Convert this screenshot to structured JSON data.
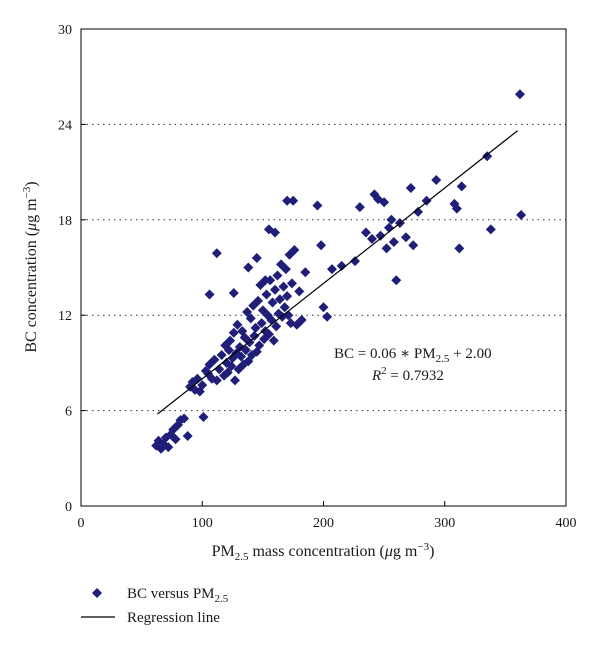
{
  "chart_data": {
    "type": "scatter",
    "xlabel": {
      "pre": "PM",
      "sub": "2.5",
      "post": " mass concentration (",
      "mu": "μ",
      "unit": "g m",
      "sup": "−3",
      "close": ")"
    },
    "ylabel": {
      "pre": "BC concentration (",
      "mu": "μ",
      "unit": "g m",
      "sup": "−3",
      "close": ")"
    },
    "xlim": [
      0,
      400
    ],
    "ylim": [
      0,
      30
    ],
    "x_ticks": [
      "0",
      "100",
      "200",
      "300",
      "400"
    ],
    "y_ticks": [
      "0",
      "6",
      "12",
      "18",
      "24",
      "30"
    ],
    "y_tick_values": [
      0,
      6,
      12,
      18,
      24,
      30
    ],
    "x_tick_values": [
      0,
      100,
      200,
      300,
      400
    ],
    "grid": "horizontal dotted",
    "series": [
      {
        "name": "BC versus PM2.5",
        "marker": "diamond",
        "color": "#1f1f7a",
        "points": [
          [
            62,
            3.8
          ],
          [
            64,
            4.1
          ],
          [
            66,
            3.6
          ],
          [
            68,
            3.9
          ],
          [
            70,
            4.3
          ],
          [
            72,
            3.7
          ],
          [
            74,
            4.5
          ],
          [
            76,
            4.8
          ],
          [
            78,
            4.2
          ],
          [
            80,
            5.1
          ],
          [
            82,
            5.4
          ],
          [
            85,
            5.5
          ],
          [
            88,
            4.4
          ],
          [
            90,
            7.5
          ],
          [
            92,
            7.8
          ],
          [
            94,
            7.3
          ],
          [
            96,
            8.0
          ],
          [
            98,
            7.2
          ],
          [
            100,
            7.6
          ],
          [
            101,
            5.6
          ],
          [
            103,
            8.5
          ],
          [
            105,
            8.3
          ],
          [
            106,
            8.9
          ],
          [
            108,
            8.0
          ],
          [
            110,
            9.2
          ],
          [
            112,
            7.9
          ],
          [
            114,
            8.6
          ],
          [
            116,
            9.5
          ],
          [
            118,
            8.2
          ],
          [
            119,
            10.1
          ],
          [
            120,
            9.0
          ],
          [
            121,
            8.4
          ],
          [
            122,
            9.8
          ],
          [
            123,
            10.4
          ],
          [
            124,
            8.8
          ],
          [
            125,
            9.3
          ],
          [
            126,
            10.9
          ],
          [
            127,
            7.9
          ],
          [
            128,
            9.6
          ],
          [
            129,
            11.4
          ],
          [
            130,
            8.6
          ],
          [
            131,
            10.0
          ],
          [
            132,
            9.4
          ],
          [
            133,
            11.0
          ],
          [
            134,
            8.9
          ],
          [
            135,
            10.6
          ],
          [
            136,
            9.8
          ],
          [
            137,
            12.2
          ],
          [
            138,
            9.1
          ],
          [
            139,
            10.3
          ],
          [
            140,
            11.8
          ],
          [
            141,
            9.5
          ],
          [
            142,
            12.6
          ],
          [
            143,
            10.7
          ],
          [
            144,
            11.2
          ],
          [
            145,
            9.7
          ],
          [
            146,
            12.9
          ],
          [
            147,
            10.1
          ],
          [
            148,
            13.9
          ],
          [
            149,
            11.5
          ],
          [
            150,
            12.3
          ],
          [
            151,
            10.5
          ],
          [
            152,
            11.0
          ],
          [
            153,
            13.3
          ],
          [
            154,
            12.0
          ],
          [
            155,
            10.8
          ],
          [
            156,
            14.2
          ],
          [
            157,
            11.7
          ],
          [
            158,
            12.8
          ],
          [
            159,
            10.4
          ],
          [
            160,
            13.6
          ],
          [
            161,
            11.3
          ],
          [
            162,
            14.5
          ],
          [
            163,
            12.1
          ],
          [
            164,
            13.0
          ],
          [
            165,
            15.2
          ],
          [
            166,
            11.9
          ],
          [
            167,
            13.8
          ],
          [
            168,
            12.5
          ],
          [
            169,
            14.9
          ],
          [
            170,
            13.2
          ],
          [
            171,
            12.0
          ],
          [
            172,
            15.8
          ],
          [
            173,
            11.5
          ],
          [
            174,
            14.0
          ],
          [
            176,
            16.1
          ],
          [
            178,
            11.4
          ],
          [
            180,
            13.5
          ],
          [
            182,
            11.7
          ],
          [
            175,
            19.2
          ],
          [
            160,
            17.2
          ],
          [
            152,
            14.2
          ],
          [
            145,
            15.6
          ],
          [
            138,
            15.0
          ],
          [
            126,
            13.4
          ],
          [
            112,
            15.9
          ],
          [
            106,
            13.3
          ],
          [
            195,
            18.9
          ],
          [
            198,
            16.4
          ],
          [
            185,
            14.7
          ],
          [
            200,
            12.5
          ],
          [
            203,
            11.9
          ],
          [
            207,
            14.9
          ],
          [
            215,
            15.1
          ],
          [
            226,
            15.4
          ],
          [
            230,
            18.8
          ],
          [
            235,
            17.2
          ],
          [
            240,
            16.8
          ],
          [
            242,
            19.6
          ],
          [
            245,
            19.3
          ],
          [
            247,
            17.0
          ],
          [
            250,
            19.1
          ],
          [
            252,
            16.2
          ],
          [
            254,
            17.5
          ],
          [
            256,
            18.0
          ],
          [
            258,
            16.6
          ],
          [
            260,
            14.2
          ],
          [
            263,
            17.8
          ],
          [
            268,
            16.9
          ],
          [
            272,
            20.0
          ],
          [
            274,
            16.4
          ],
          [
            278,
            18.5
          ],
          [
            285,
            19.2
          ],
          [
            293,
            20.5
          ],
          [
            308,
            19.0
          ],
          [
            310,
            18.7
          ],
          [
            312,
            16.2
          ],
          [
            314,
            20.1
          ],
          [
            335,
            22.0
          ],
          [
            338,
            17.4
          ],
          [
            362,
            25.9
          ],
          [
            363,
            18.3
          ],
          [
            170,
            19.2
          ],
          [
            155,
            17.4
          ]
        ]
      }
    ],
    "regression": {
      "name": "Regression line",
      "slope": 0.06,
      "intercept": 2.0,
      "x_range": [
        63,
        360
      ],
      "equation": {
        "lhs": "BC = 0.06 ∗ PM",
        "sub": "2.5",
        "rhs": " + 2.00"
      },
      "r2": {
        "r": "R",
        "sup": "2",
        "rest": " = 0.7932"
      }
    },
    "legend": {
      "placement": "bottom-left",
      "entries": [
        {
          "label": "BC versus PM",
          "sub": "2.5"
        },
        {
          "label": "Regression line"
        }
      ]
    }
  }
}
